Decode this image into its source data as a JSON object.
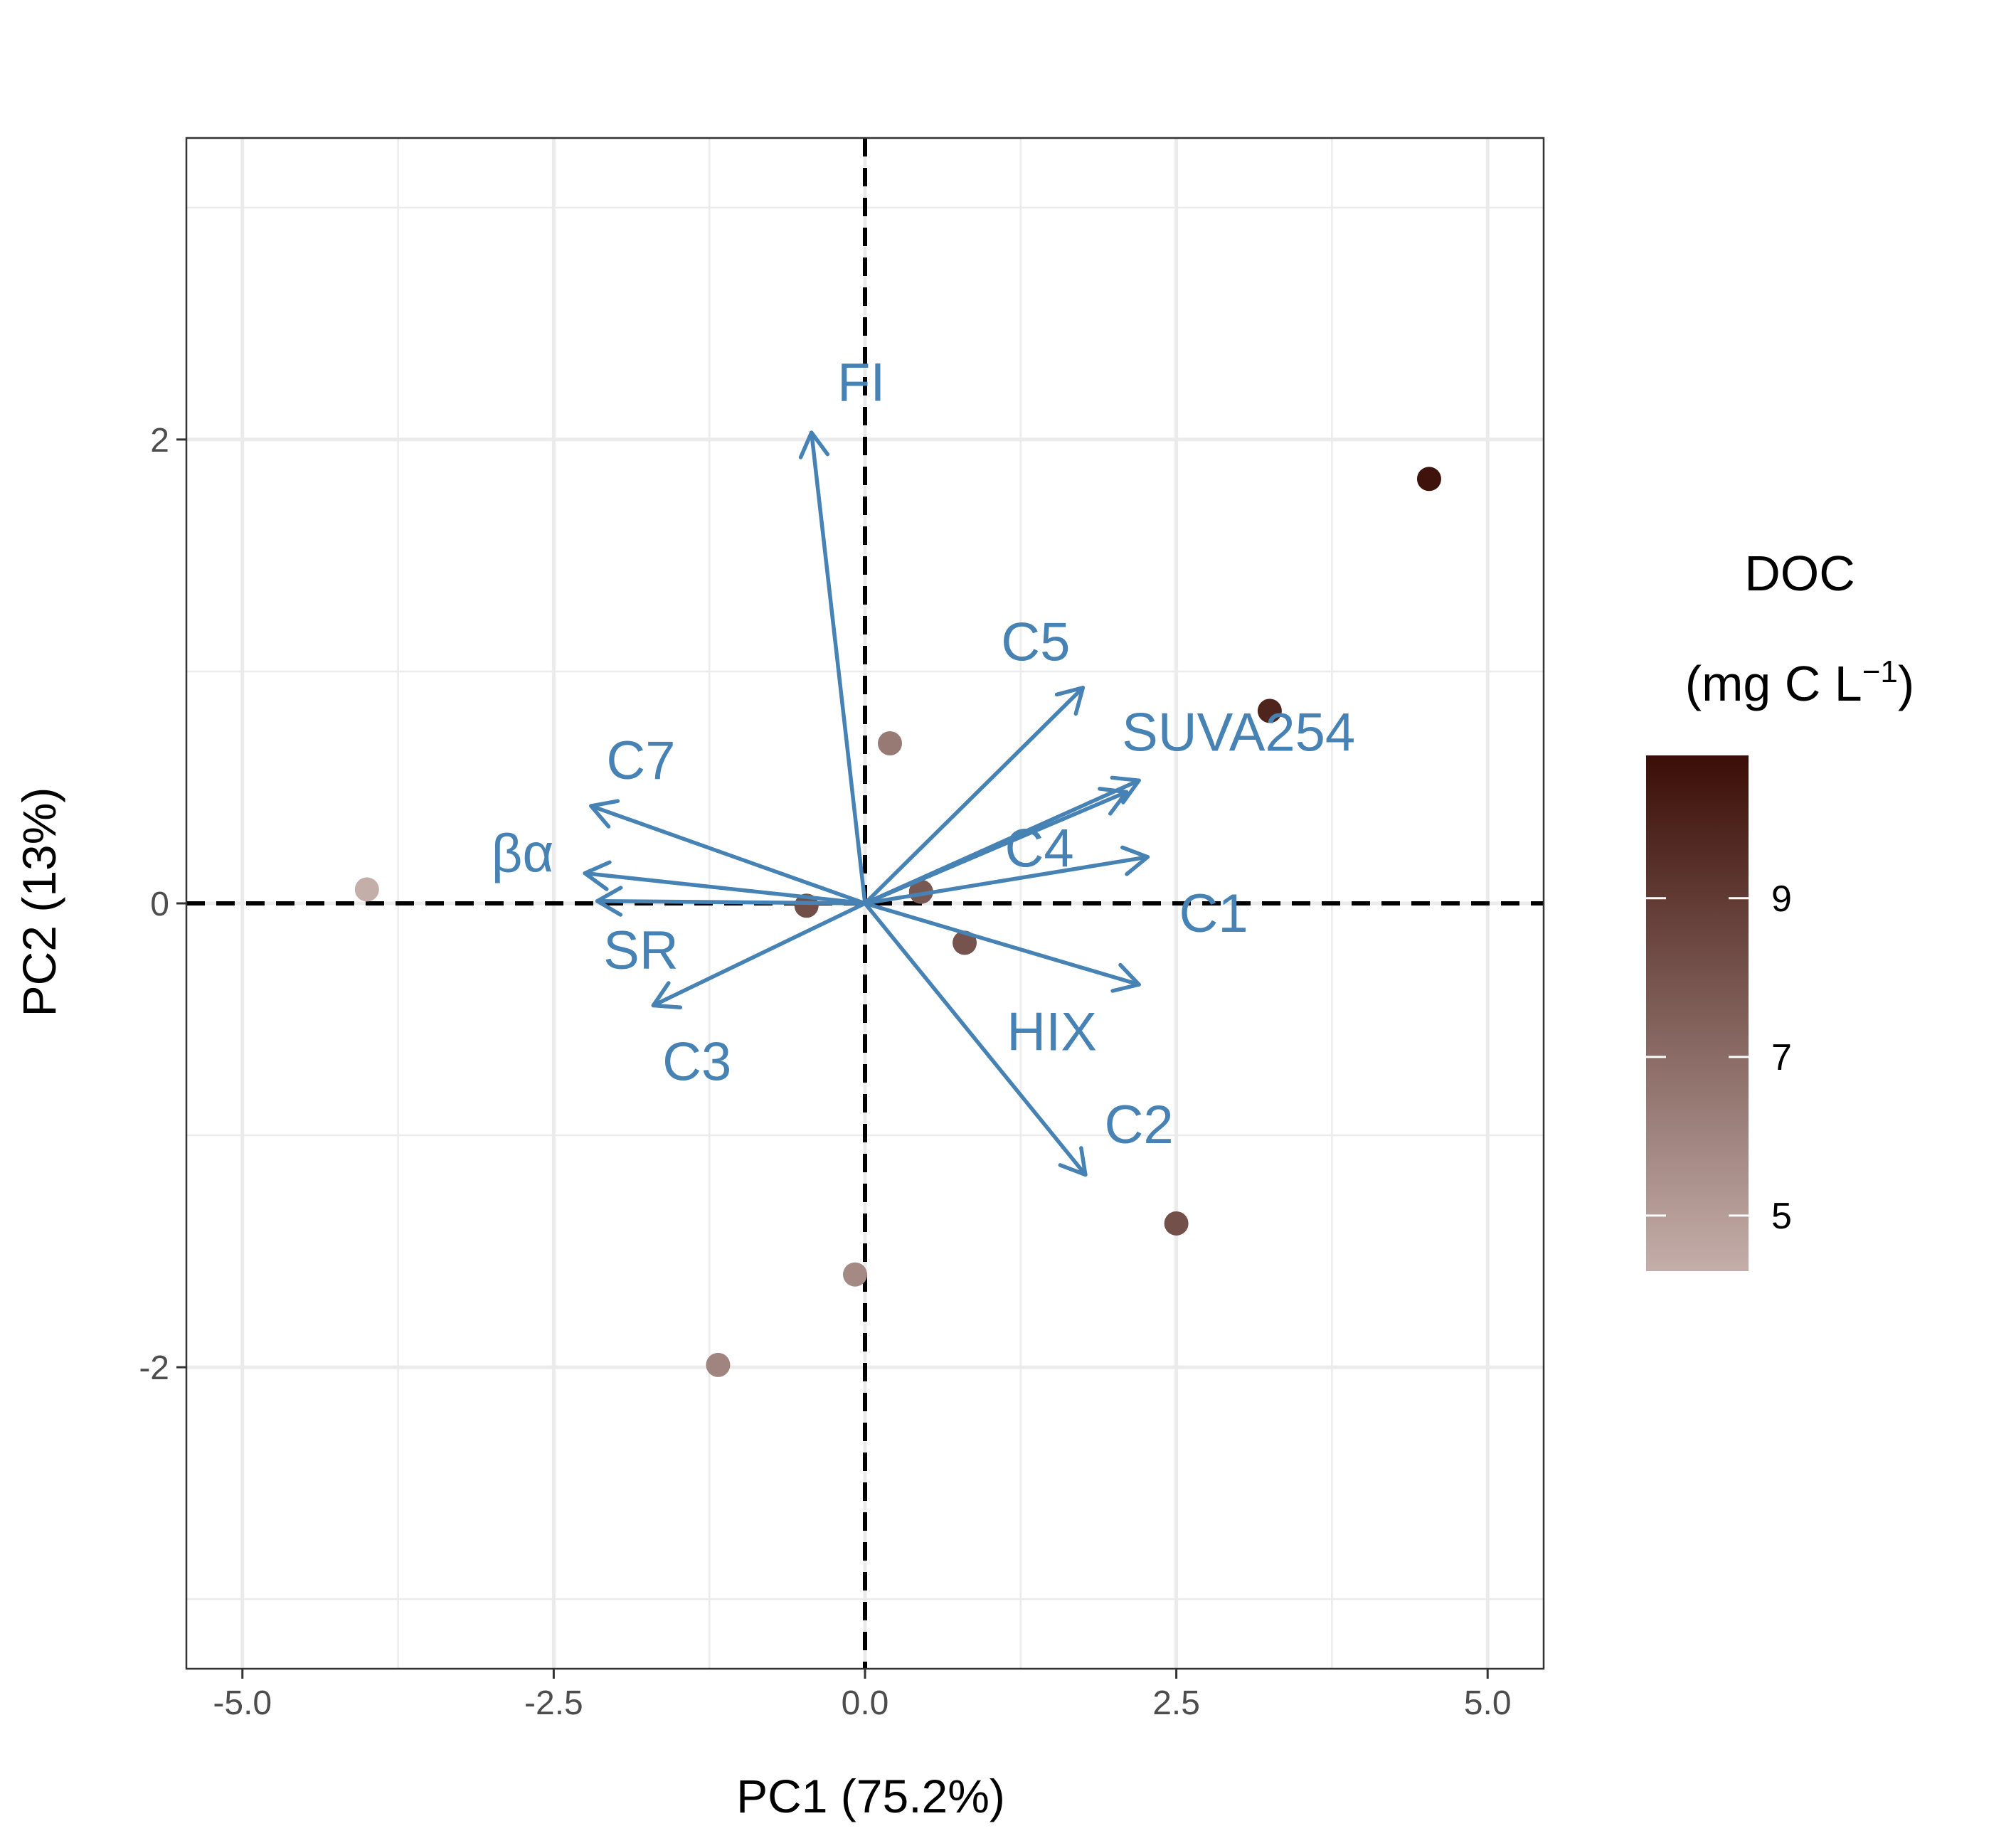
{
  "chart_data": {
    "type": "scatter",
    "subtype": "pca-biplot",
    "xlabel": "PC1 (75.2%)",
    "ylabel": "PC2 (13%)",
    "xlim": [
      -5.45,
      5.45
    ],
    "ylim": [
      -3.3,
      3.3
    ],
    "x_ticks": [
      -5.0,
      -2.5,
      0.0,
      2.5,
      5.0
    ],
    "x_tick_labels": [
      "-5.0",
      "-2.5",
      "0.0",
      "2.5",
      "5.0"
    ],
    "y_ticks": [
      -2,
      0,
      2
    ],
    "y_tick_labels": [
      "-2",
      "0",
      "2"
    ],
    "grid": true,
    "reference_lines": {
      "x": 0,
      "y": 0,
      "style": "dashed",
      "color": "#000000"
    },
    "points": [
      {
        "x": -4.0,
        "y": 0.06,
        "doc": 4.2
      },
      {
        "x": -0.47,
        "y": -0.01,
        "doc": 8.2
      },
      {
        "x": 0.2,
        "y": 0.69,
        "doc": 6.4
      },
      {
        "x": 0.45,
        "y": 0.05,
        "doc": 7.8
      },
      {
        "x": 0.8,
        "y": -0.17,
        "doc": 8.0
      },
      {
        "x": -0.08,
        "y": -1.6,
        "doc": 5.8
      },
      {
        "x": -1.18,
        "y": -1.99,
        "doc": 6.0
      },
      {
        "x": 2.5,
        "y": -1.38,
        "doc": 8.1
      },
      {
        "x": 3.25,
        "y": 0.83,
        "doc": 9.9
      },
      {
        "x": 4.53,
        "y": 1.83,
        "doc": 10.6
      }
    ],
    "loadings": {
      "color": "#4682b4",
      "vectors": [
        {
          "name": "FI",
          "x": -0.43,
          "y": 2.03,
          "label_x": -0.03,
          "label_y": 2.25
        },
        {
          "name": "C5",
          "x": 1.75,
          "y": 0.93,
          "label_x": 1.37,
          "label_y": 1.13
        },
        {
          "name": "SUVA254",
          "x": 2.2,
          "y": 0.53,
          "label_x": 3.0,
          "label_y": 0.74
        },
        {
          "name": "C4",
          "x": 2.1,
          "y": 0.48,
          "label_x": 1.4,
          "label_y": 0.24
        },
        {
          "name": "C1",
          "x": 2.27,
          "y": 0.2,
          "label_x": 2.8,
          "label_y": -0.04
        },
        {
          "name": "HIX",
          "x": 2.2,
          "y": -0.35,
          "label_x": 1.5,
          "label_y": -0.55
        },
        {
          "name": "C2",
          "x": 1.77,
          "y": -1.17,
          "label_x": 2.2,
          "label_y": -0.95
        },
        {
          "name": "C7",
          "x": -2.2,
          "y": 0.42,
          "label_x": -1.8,
          "label_y": 0.62
        },
        {
          "name": "βα",
          "x": -2.25,
          "y": 0.13,
          "label_x": -2.75,
          "label_y": 0.22
        },
        {
          "name": "SR",
          "x": -2.15,
          "y": 0.01,
          "label_x": -1.8,
          "label_y": -0.2
        },
        {
          "name": "C3",
          "x": -1.7,
          "y": -0.44,
          "label_x": -1.35,
          "label_y": -0.68
        }
      ]
    },
    "legend": {
      "title_line1": "DOC",
      "title_line2": "(mg C L",
      "title_superscript": "−1",
      "title_close": ")",
      "range": [
        4.3,
        10.8
      ],
      "ticks": [
        5,
        7,
        9
      ],
      "tick_labels": [
        "5",
        "7",
        "9"
      ],
      "low_color": "#c4aea9",
      "high_color": "#3b0e07",
      "placement": "right"
    }
  }
}
